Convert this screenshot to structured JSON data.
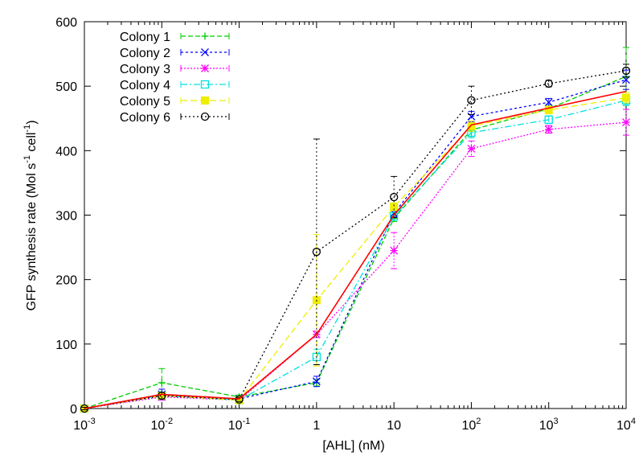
{
  "chart_data": {
    "type": "line",
    "xlabel": "[AHL] (nM)",
    "ylabel": "GFP synthesis rate (Mol s",
    "ylabel_sup1": "-1",
    "ylabel_mid": " cell",
    "ylabel_sup2": "-1",
    "ylabel_end": ")",
    "xscale": "log",
    "xlim": [
      0.001,
      10000
    ],
    "ylim": [
      0,
      600
    ],
    "x": [
      0.001,
      0.01,
      0.1,
      1,
      10,
      100,
      1000,
      10000
    ],
    "x_ticks": [
      {
        "base": "10",
        "exp": "-3"
      },
      {
        "base": "10",
        "exp": "-2"
      },
      {
        "base": "10",
        "exp": "-1"
      },
      {
        "base": "1",
        "exp": ""
      },
      {
        "base": "10",
        "exp": ""
      },
      {
        "base": "10",
        "exp": "2"
      },
      {
        "base": "10",
        "exp": "3"
      },
      {
        "base": "10",
        "exp": "4"
      }
    ],
    "y_ticks": [
      "0",
      "100",
      "200",
      "300",
      "400",
      "500",
      "600"
    ],
    "legend_position": "top-left",
    "series": [
      {
        "name": "Colony 1",
        "color": "#00cc00",
        "dash": "6,3",
        "marker": "plus",
        "values": [
          0,
          40,
          18,
          40,
          295,
          432,
          465,
          515
        ],
        "errors": [
          2,
          22,
          3,
          5,
          5,
          10,
          6,
          45
        ]
      },
      {
        "name": "Colony 2",
        "color": "#0000ff",
        "dash": "3,3",
        "marker": "cross",
        "values": [
          0,
          22,
          15,
          42,
          303,
          453,
          475,
          510
        ],
        "errors": [
          2,
          8,
          3,
          8,
          6,
          8,
          6,
          15
        ]
      },
      {
        "name": "Colony 3",
        "color": "#ff00ff",
        "dash": "2,2",
        "marker": "star",
        "values": [
          0,
          18,
          13,
          115,
          245,
          403,
          433,
          444
        ],
        "errors": [
          2,
          5,
          3,
          5,
          28,
          12,
          6,
          20
        ]
      },
      {
        "name": "Colony 4",
        "color": "#00e0e0",
        "dash": "8,3,2,3",
        "marker": "square",
        "values": [
          0,
          20,
          13,
          80,
          298,
          428,
          448,
          478
        ],
        "errors": [
          2,
          5,
          3,
          12,
          6,
          8,
          6,
          8
        ]
      },
      {
        "name": "Colony 5",
        "color": "#eeee00",
        "dash": "8,4",
        "marker": "filled-square",
        "values": [
          0,
          20,
          13,
          168,
          313,
          438,
          463,
          482
        ],
        "errors": [
          2,
          5,
          3,
          102,
          6,
          8,
          6,
          8
        ]
      },
      {
        "name": "Colony 6",
        "color": "#000000",
        "dash": "2,3",
        "marker": "circle",
        "values": [
          0,
          20,
          14,
          243,
          328,
          478,
          504,
          524
        ],
        "errors": [
          2,
          5,
          3,
          175,
          32,
          22,
          5,
          10
        ]
      },
      {
        "name": "",
        "color": "#ff0000",
        "dash": "",
        "marker": "none",
        "values": [
          0,
          22,
          15,
          115,
          300,
          440,
          466,
          492
        ],
        "errors": []
      }
    ]
  }
}
